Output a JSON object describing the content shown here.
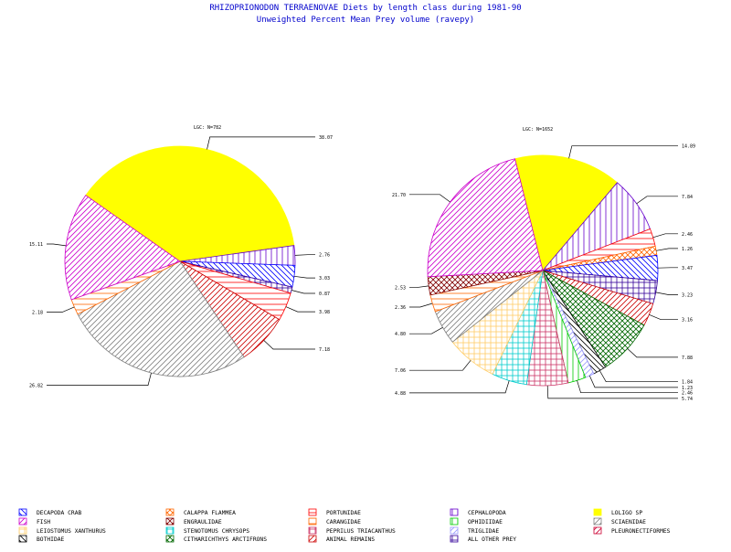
{
  "title_line1": "RHIZOPRIONODON TERRAENOVAE Diets by length class during 1981-90",
  "title_line2": "Unweighted Percent Mean Prey volume (ravepy)",
  "colors": {
    "title": "#0000cc",
    "text": "#000000"
  },
  "chart_data": [
    {
      "type": "pie",
      "label": "LGC: N=782",
      "slices": [
        {
          "category": "LOLIGO SP",
          "value": 38.07,
          "label": "38.07"
        },
        {
          "category": "CEPHALOPODA",
          "value": 2.76,
          "label": "2.76"
        },
        {
          "category": "DECAPODA CRAB",
          "value": 3.03,
          "label": "3.03"
        },
        {
          "category": "ALL OTHER PREY",
          "value": 0.87,
          "label": "0.87"
        },
        {
          "category": "PORTUNIDAE",
          "value": 3.98,
          "label": "3.98"
        },
        {
          "category": "ANIMAL REMAINS",
          "value": 7.18,
          "label": "7.18"
        },
        {
          "category": "SCIAENIDAE",
          "value": 26.82,
          "label": "26.82"
        },
        {
          "category": "CARANGIDAE",
          "value": 2.18,
          "label": "2.18"
        },
        {
          "category": "FISH",
          "value": 15.11,
          "label": "15.11"
        }
      ]
    },
    {
      "type": "pie",
      "label": "LGC: N=1652",
      "slices": [
        {
          "category": "LOLIGO SP",
          "value": 14.89,
          "label": "14.89"
        },
        {
          "category": "CEPHALOPODA",
          "value": 7.84,
          "label": "7.84"
        },
        {
          "category": "PORTUNIDAE",
          "value": 2.46,
          "label": "2.46"
        },
        {
          "category": "CALAPPA FLAMMEA",
          "value": 1.26,
          "label": "1.26"
        },
        {
          "category": "DECAPODA CRAB",
          "value": 3.47,
          "label": "3.47"
        },
        {
          "category": "ALL OTHER PREY",
          "value": 3.23,
          "label": "3.23"
        },
        {
          "category": "ANIMAL REMAINS",
          "value": 3.16,
          "label": "3.16"
        },
        {
          "category": "CITHARICHTHYS ARCTIFRONS",
          "value": 7.88,
          "label": "7.88"
        },
        {
          "category": "BOTHIDAE",
          "value": 1.84,
          "label": "1.84"
        },
        {
          "category": "TRIGLIDAE",
          "value": 1.23,
          "label": "1.23"
        },
        {
          "category": "OPHIDIIDAE",
          "value": 2.46,
          "label": "2.46"
        },
        {
          "category": "PEPRILUS TRIACANTHUS",
          "value": 5.74,
          "label": "5.74"
        },
        {
          "category": "STENOTOMUS CHRYSOPS",
          "value": 4.88,
          "label": "4.88"
        },
        {
          "category": "LEIOSTOMUS XANTHURUS",
          "value": 7.06,
          "label": "7.06"
        },
        {
          "category": "SCIAENIDAE",
          "value": 4.8,
          "label": "4.80"
        },
        {
          "category": "CARANGIDAE",
          "value": 2.36,
          "label": "2.36"
        },
        {
          "category": "ENGRAULIDAE",
          "value": 2.53,
          "label": "2.53"
        },
        {
          "category": "FISH",
          "value": 21.7,
          "label": "21.70"
        }
      ]
    }
  ],
  "legend": [
    {
      "name": "DECAPODA CRAB",
      "color": "#0000ff",
      "pattern": "hatch-diag-rev"
    },
    {
      "name": "CALAPPA FLAMMEA",
      "color": "#ff6600",
      "pattern": "crosshatch-diag"
    },
    {
      "name": "PORTUNIDAE",
      "color": "#ff0000",
      "pattern": "hatch-horiz"
    },
    {
      "name": "CEPHALOPODA",
      "color": "#6600cc",
      "pattern": "hatch-vert"
    },
    {
      "name": "LOLIGO SP",
      "color": "#ffff00",
      "pattern": "solid"
    },
    {
      "name": "FISH",
      "color": "#cc00cc",
      "pattern": "hatch-diag"
    },
    {
      "name": "ENGRAULIDAE",
      "color": "#800000",
      "pattern": "crosshatch-diag"
    },
    {
      "name": "CARANGIDAE",
      "color": "#ff6600",
      "pattern": "hatch-horiz"
    },
    {
      "name": "OPHIDIIDAE",
      "color": "#00cc00",
      "pattern": "hatch-vert"
    },
    {
      "name": "SCIAENIDAE",
      "color": "#808080",
      "pattern": "hatch-diag"
    },
    {
      "name": "LEIOSTOMUS XANTHURUS",
      "color": "#ffcc66",
      "pattern": "crosshatch"
    },
    {
      "name": "STENOTOMUS CHRYSOPS",
      "color": "#00cccc",
      "pattern": "crosshatch"
    },
    {
      "name": "PEPRILUS TRIACANTHUS",
      "color": "#cc3366",
      "pattern": "crosshatch"
    },
    {
      "name": "TRIGLIDAE",
      "color": "#9999ff",
      "pattern": "hatch-diag"
    },
    {
      "name": "PLEURONECTIFORMES",
      "color": "#cc0033",
      "pattern": "hatch-diag"
    },
    {
      "name": "BOTHIDAE",
      "color": "#000000",
      "pattern": "hatch-diag-rev"
    },
    {
      "name": "CITHARICHTHYS ARCTIFRONS",
      "color": "#006600",
      "pattern": "crosshatch-diag"
    },
    {
      "name": "ANIMAL REMAINS",
      "color": "#cc0000",
      "pattern": "hatch-diag"
    },
    {
      "name": "ALL OTHER PREY",
      "color": "#330099",
      "pattern": "crosshatch"
    }
  ]
}
